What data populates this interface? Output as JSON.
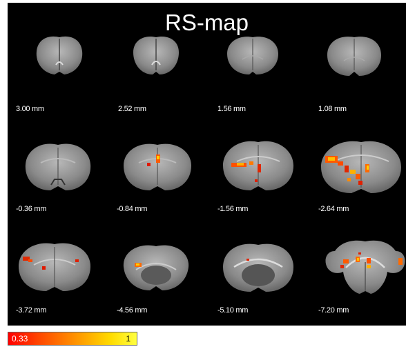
{
  "figure": {
    "title": "RS-map"
  },
  "slices": [
    {
      "label": "3.00 mm"
    },
    {
      "label": "2.52 mm"
    },
    {
      "label": "1.56 mm"
    },
    {
      "label": "1.08 mm"
    },
    {
      "label": "-0.36 mm"
    },
    {
      "label": "-0.84 mm"
    },
    {
      "label": "-1.56 mm"
    },
    {
      "label": "-2.64 mm"
    },
    {
      "label": "-3.72 mm"
    },
    {
      "label": "-4.56 mm"
    },
    {
      "label": "-5.10 mm"
    },
    {
      "label": "-7.20 mm"
    }
  ],
  "colorbar": {
    "min_label": "0.33",
    "max_label": "1",
    "colors": [
      "#ff0000",
      "#ff9a00",
      "#ffff40"
    ]
  },
  "colors": {
    "background": "#000000",
    "tissue": "#8a8a8a",
    "activation_low": "#e02000",
    "activation_high": "#ffd000"
  }
}
